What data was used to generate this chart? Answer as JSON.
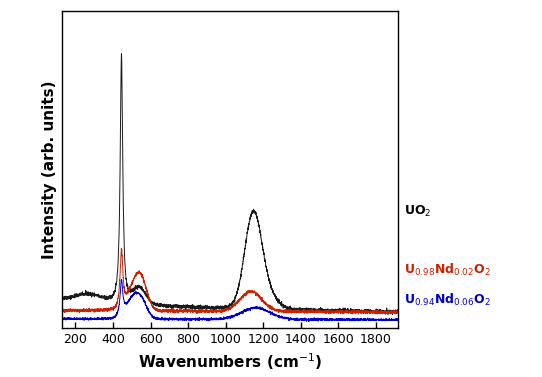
{
  "title": "",
  "xlabel": "Wavenumbers (cm$^{-1}$)",
  "ylabel": "Intensity (arb. units)",
  "xlim": [
    130,
    1920
  ],
  "background_color": "#ffffff",
  "line_colors": [
    "#1a1a1a",
    "#cc2200",
    "#0000cc"
  ],
  "label_colors": [
    "#000000",
    "#cc2200",
    "#0000cc"
  ],
  "xticks": [
    200,
    400,
    600,
    800,
    1000,
    1200,
    1400,
    1600,
    1800
  ],
  "label_fontsize": 9,
  "tick_fontsize": 9,
  "axis_label_fontsize": 11
}
